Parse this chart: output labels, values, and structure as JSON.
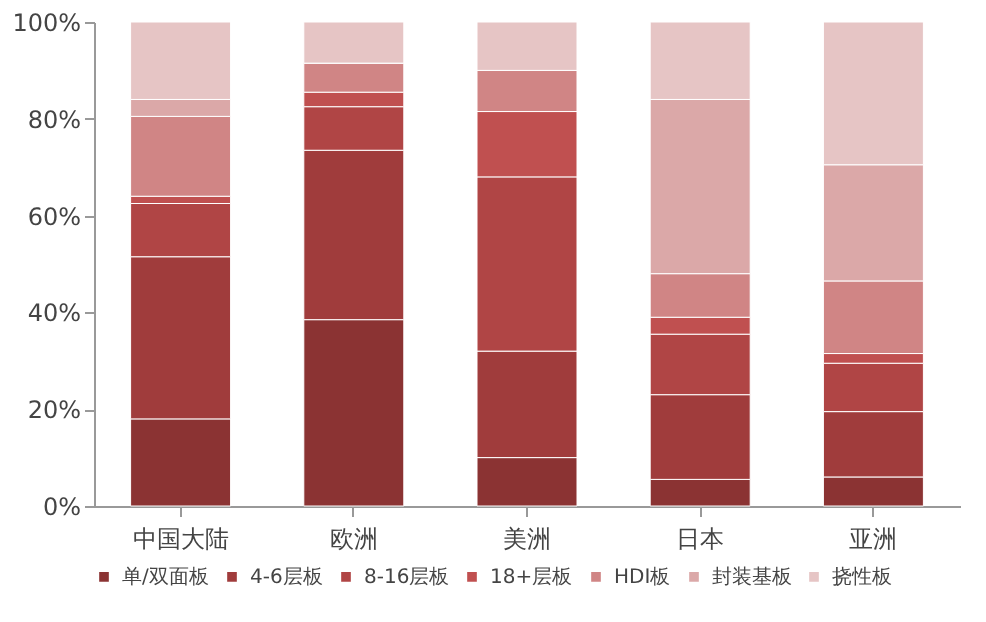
{
  "chart_data": {
    "type": "bar",
    "stacked": true,
    "categories": [
      "中国大陆",
      "欧洲",
      "美洲",
      "日本",
      "亚洲"
    ],
    "series": [
      {
        "name": "单/双面板",
        "color": "#8b3333",
        "values": [
          18,
          38.5,
          10,
          5.5,
          6
        ]
      },
      {
        "name": "4-6层板",
        "color": "#a03c3c",
        "values": [
          33.5,
          35,
          22,
          17.5,
          13.5
        ]
      },
      {
        "name": "8-16层板",
        "color": "#b04545",
        "values": [
          11,
          9,
          36,
          12.5,
          10
        ]
      },
      {
        "name": "18+层板",
        "color": "#c05050",
        "values": [
          1.5,
          3,
          13.5,
          3.5,
          2
        ]
      },
      {
        "name": "HDI板",
        "color": "#d08585",
        "values": [
          16.5,
          6,
          8.5,
          9,
          15
        ]
      },
      {
        "name": "封装基板",
        "color": "#dba8a8",
        "values": [
          3.5,
          0,
          0,
          36,
          24
        ]
      },
      {
        "name": "挠性板",
        "color": "#e6c5c5",
        "values": [
          16,
          8.5,
          10,
          16,
          29.5
        ]
      }
    ],
    "ylim": [
      0,
      100
    ],
    "yticks": [
      {
        "value": 0,
        "label": "0%"
      },
      {
        "value": 20,
        "label": "20%"
      },
      {
        "value": 40,
        "label": "40%"
      },
      {
        "value": 60,
        "label": "60%"
      },
      {
        "value": 80,
        "label": "80%"
      },
      {
        "value": 100,
        "label": "100%"
      }
    ],
    "grid": false,
    "legend": "bottom"
  }
}
